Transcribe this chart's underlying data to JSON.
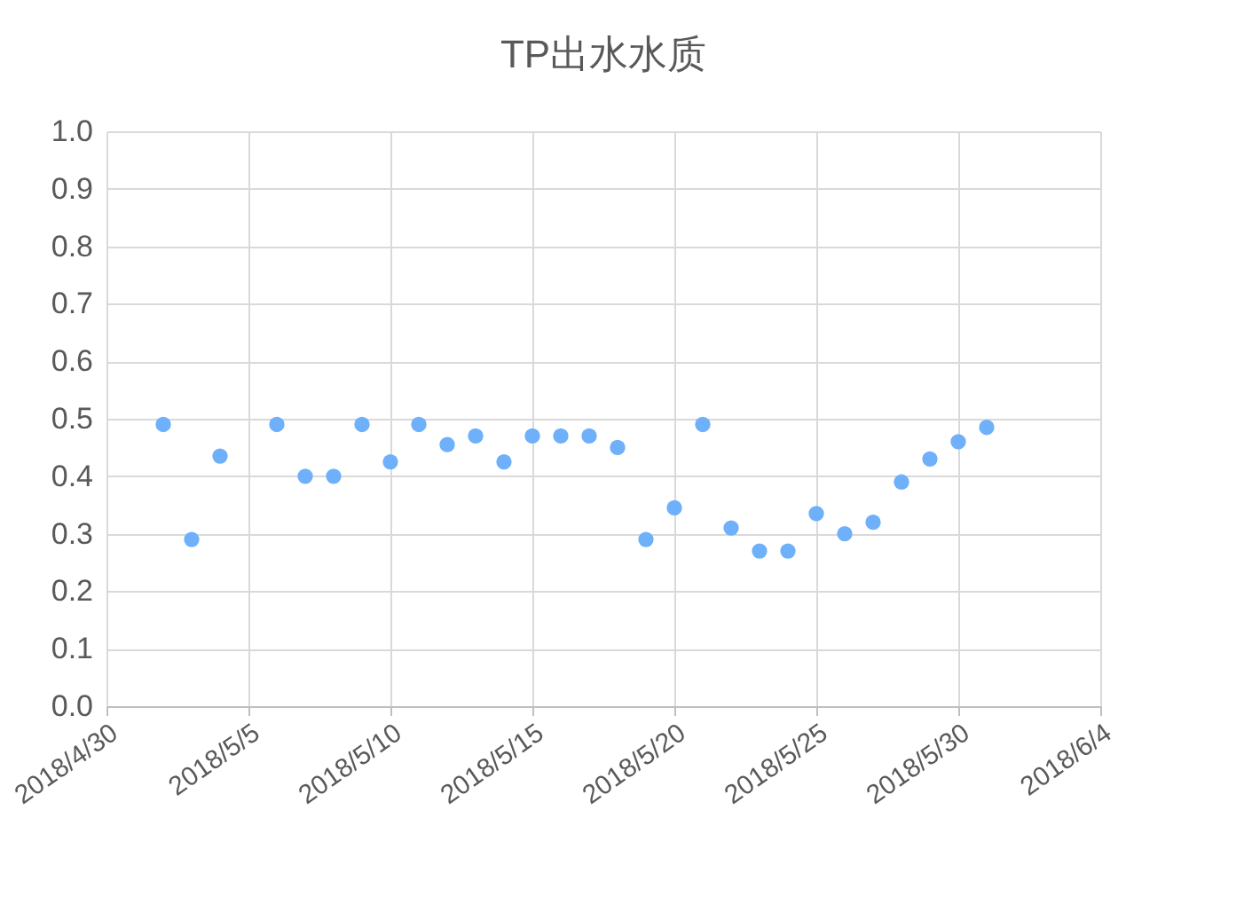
{
  "chart_data": {
    "type": "scatter",
    "title": "TP出水水质",
    "x": [
      "2018-05-02",
      "2018-05-03",
      "2018-05-04",
      "2018-05-06",
      "2018-05-07",
      "2018-05-08",
      "2018-05-09",
      "2018-05-10",
      "2018-05-11",
      "2018-05-12",
      "2018-05-13",
      "2018-05-14",
      "2018-05-15",
      "2018-05-16",
      "2018-05-17",
      "2018-05-18",
      "2018-05-19",
      "2018-05-20",
      "2018-05-21",
      "2018-05-22",
      "2018-05-23",
      "2018-05-24",
      "2018-05-25",
      "2018-05-26",
      "2018-05-27",
      "2018-05-28",
      "2018-05-29",
      "2018-05-30",
      "2018-05-31"
    ],
    "series": [
      {
        "color": "#6fb0fa",
        "values": [
          0.49,
          0.29,
          0.435,
          0.49,
          0.4,
          0.4,
          0.49,
          0.425,
          0.49,
          0.455,
          0.47,
          0.425,
          0.47,
          0.47,
          0.47,
          0.45,
          0.29,
          0.345,
          0.49,
          0.31,
          0.27,
          0.27,
          0.335,
          0.3,
          0.32,
          0.39,
          0.43,
          0.46,
          0.485
        ]
      }
    ],
    "xlim": [
      "2018-04-30",
      "2018-06-04"
    ],
    "xticks": [
      {
        "value": "2018-04-30",
        "label": "2018/4/30"
      },
      {
        "value": "2018-05-05",
        "label": "2018/5/5"
      },
      {
        "value": "2018-05-10",
        "label": "2018/5/10"
      },
      {
        "value": "2018-05-15",
        "label": "2018/5/15"
      },
      {
        "value": "2018-05-20",
        "label": "2018/5/20"
      },
      {
        "value": "2018-05-25",
        "label": "2018/5/25"
      },
      {
        "value": "2018-05-30",
        "label": "2018/5/30"
      },
      {
        "value": "2018-06-04",
        "label": "2018/6/4"
      }
    ],
    "ylim": [
      0,
      1.0
    ],
    "yticks": [
      {
        "value": 0,
        "label": "0.0"
      },
      {
        "value": 0.1,
        "label": "0.1"
      },
      {
        "value": 0.2,
        "label": "0.2"
      },
      {
        "value": 0.3,
        "label": "0.3"
      },
      {
        "value": 0.4,
        "label": "0.4"
      },
      {
        "value": 0.5,
        "label": "0.5"
      },
      {
        "value": 0.6,
        "label": "0.6"
      },
      {
        "value": 0.7,
        "label": "0.7"
      },
      {
        "value": 0.8,
        "label": "0.8"
      },
      {
        "value": 0.9,
        "label": "0.9"
      },
      {
        "value": 1.0,
        "label": "1.0"
      }
    ],
    "grid": true,
    "marker": "circle",
    "legend": false
  }
}
